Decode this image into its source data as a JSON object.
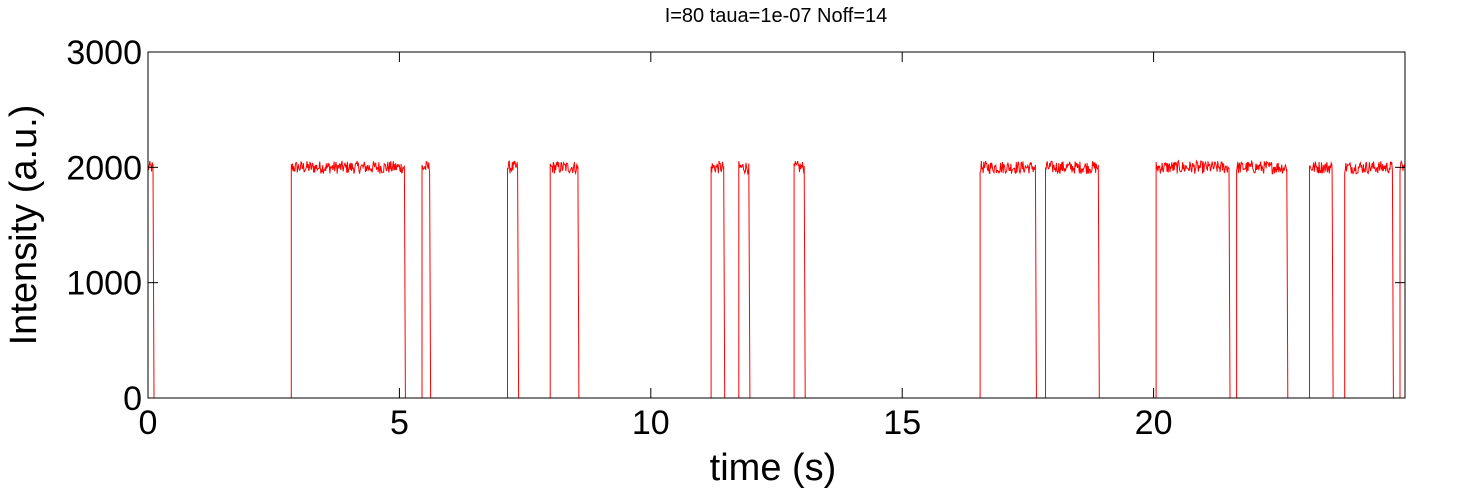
{
  "chart_data": {
    "type": "line",
    "title": "I=80 taua=1e-07 Noff=14",
    "xlabel": "time (s)",
    "ylabel": "Intensity (a.u.)",
    "xlim": [
      0,
      25
    ],
    "ylim": [
      0,
      3000
    ],
    "xticks": [
      0,
      5,
      10,
      15,
      20
    ],
    "yticks": [
      0,
      1000,
      2000,
      3000
    ],
    "grid": false,
    "legend": "none",
    "series": [
      {
        "color": "#ff0000",
        "off_level": 0,
        "on_level": 2000,
        "noise_amplitude": 70,
        "on_intervals": [
          [
            0.0,
            0.1
          ],
          [
            2.85,
            5.1
          ],
          [
            5.45,
            5.6
          ],
          [
            7.15,
            7.35
          ],
          [
            8.0,
            8.55
          ],
          [
            11.2,
            11.45
          ],
          [
            11.75,
            11.95
          ],
          [
            12.85,
            13.05
          ],
          [
            16.55,
            17.65
          ],
          [
            17.85,
            18.9
          ],
          [
            20.05,
            21.5
          ],
          [
            21.65,
            22.65
          ],
          [
            23.1,
            23.55
          ],
          [
            23.8,
            24.75
          ],
          [
            24.9,
            25.0
          ]
        ]
      }
    ]
  }
}
